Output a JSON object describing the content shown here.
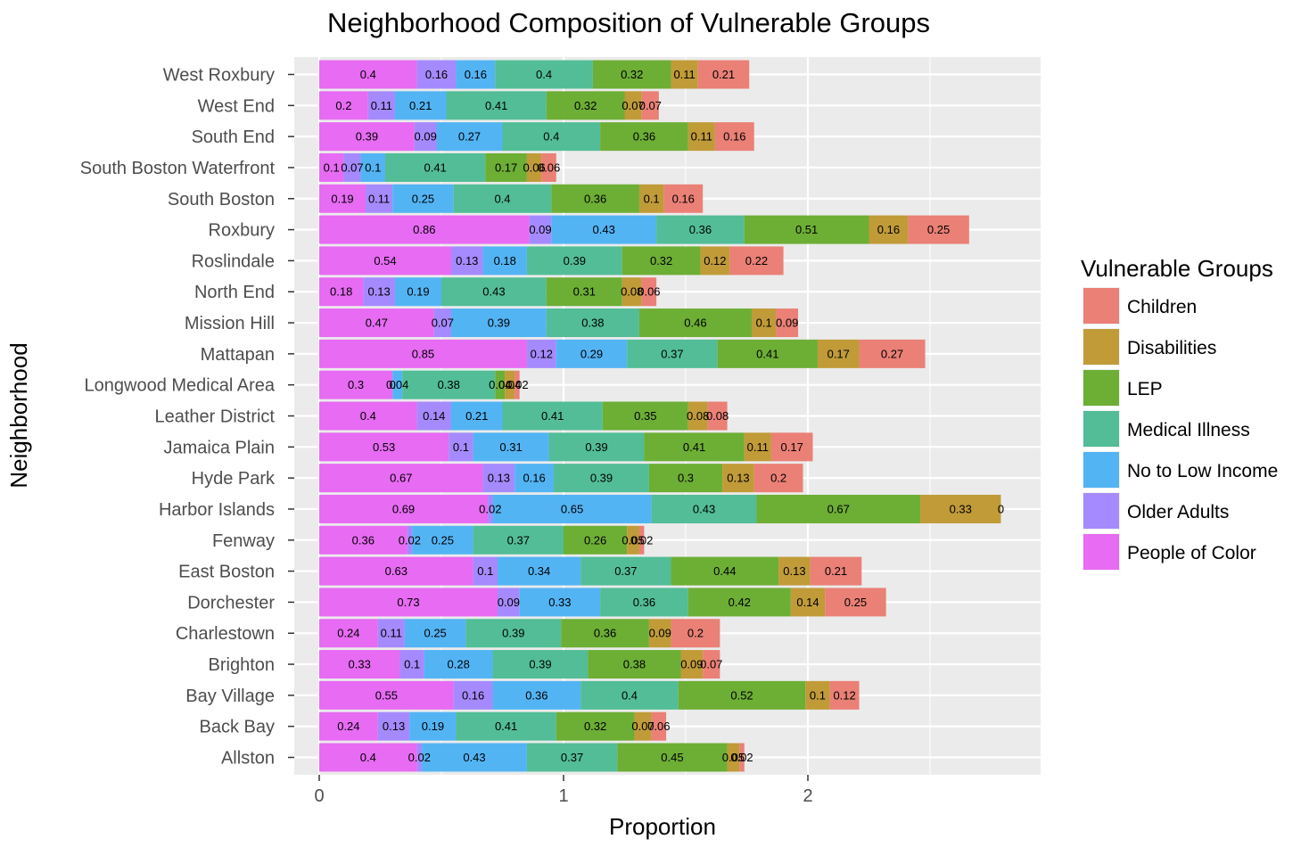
{
  "chart_data": {
    "type": "bar",
    "orientation": "horizontal",
    "stacked": true,
    "title": "Neighborhood Composition of Vulnerable Groups",
    "xlabel": "Proportion",
    "ylabel": "Neighborhood",
    "xlim": [
      -0.12,
      2.95
    ],
    "x_ticks": [
      0,
      1,
      2
    ],
    "grid": true,
    "legend_position": "right",
    "legend_title": "Vulnerable Groups",
    "categories": [
      "West Roxbury",
      "West End",
      "South End",
      "South Boston Waterfront",
      "South Boston",
      "Roxbury",
      "Roslindale",
      "North End",
      "Mission Hill",
      "Mattapan",
      "Longwood Medical Area",
      "Leather District",
      "Jamaica Plain",
      "Hyde Park",
      "Harbor Islands",
      "Fenway",
      "East Boston",
      "Dorchester",
      "Charlestown",
      "Brighton",
      "Bay Village",
      "Back Bay",
      "Allston"
    ],
    "series": [
      {
        "name": "People of Color",
        "color": "#E76BF3",
        "values": [
          0.4,
          0.2,
          0.39,
          0.1,
          0.19,
          0.86,
          0.54,
          0.18,
          0.47,
          0.85,
          0.3,
          0.4,
          0.53,
          0.67,
          0.69,
          0.36,
          0.63,
          0.73,
          0.24,
          0.33,
          0.55,
          0.24,
          0.4
        ]
      },
      {
        "name": "Older Adults",
        "color": "#A58AFF",
        "values": [
          0.16,
          0.11,
          0.09,
          0.07,
          0.11,
          0.09,
          0.13,
          0.13,
          0.07,
          0.12,
          0.0,
          0.14,
          0.1,
          0.13,
          0.02,
          0.02,
          0.1,
          0.09,
          0.11,
          0.1,
          0.16,
          0.13,
          0.02
        ]
      },
      {
        "name": "No to Low Income",
        "color": "#53B4F4",
        "values": [
          0.16,
          0.21,
          0.27,
          0.1,
          0.25,
          0.43,
          0.18,
          0.19,
          0.39,
          0.29,
          0.04,
          0.21,
          0.31,
          0.16,
          0.65,
          0.25,
          0.34,
          0.33,
          0.25,
          0.28,
          0.36,
          0.19,
          0.43
        ]
      },
      {
        "name": "Medical Illness",
        "color": "#52BD96",
        "values": [
          0.4,
          0.41,
          0.4,
          0.41,
          0.4,
          0.36,
          0.39,
          0.43,
          0.38,
          0.37,
          0.38,
          0.41,
          0.39,
          0.39,
          0.43,
          0.37,
          0.37,
          0.36,
          0.39,
          0.39,
          0.4,
          0.41,
          0.37
        ]
      },
      {
        "name": "LEP",
        "color": "#6DAE35",
        "values": [
          0.32,
          0.32,
          0.36,
          0.17,
          0.36,
          0.51,
          0.32,
          0.31,
          0.46,
          0.41,
          0.04,
          0.35,
          0.41,
          0.3,
          0.67,
          0.26,
          0.44,
          0.42,
          0.36,
          0.38,
          0.52,
          0.32,
          0.45
        ]
      },
      {
        "name": "Disabilities",
        "color": "#C09B38",
        "values": [
          0.11,
          0.07,
          0.11,
          0.06,
          0.1,
          0.16,
          0.12,
          0.08,
          0.1,
          0.17,
          0.04,
          0.08,
          0.11,
          0.13,
          0.33,
          0.05,
          0.13,
          0.14,
          0.09,
          0.09,
          0.1,
          0.07,
          0.05
        ]
      },
      {
        "name": "Children",
        "color": "#EA8076",
        "values": [
          0.21,
          0.07,
          0.16,
          0.06,
          0.16,
          0.25,
          0.22,
          0.06,
          0.09,
          0.27,
          0.02,
          0.08,
          0.17,
          0.2,
          0.0,
          0.02,
          0.21,
          0.25,
          0.2,
          0.07,
          0.12,
          0.06,
          0.02
        ]
      }
    ]
  },
  "legend_order": [
    "Children",
    "Disabilities",
    "LEP",
    "Medical Illness",
    "No to Low Income",
    "Older Adults",
    "People of Color"
  ]
}
